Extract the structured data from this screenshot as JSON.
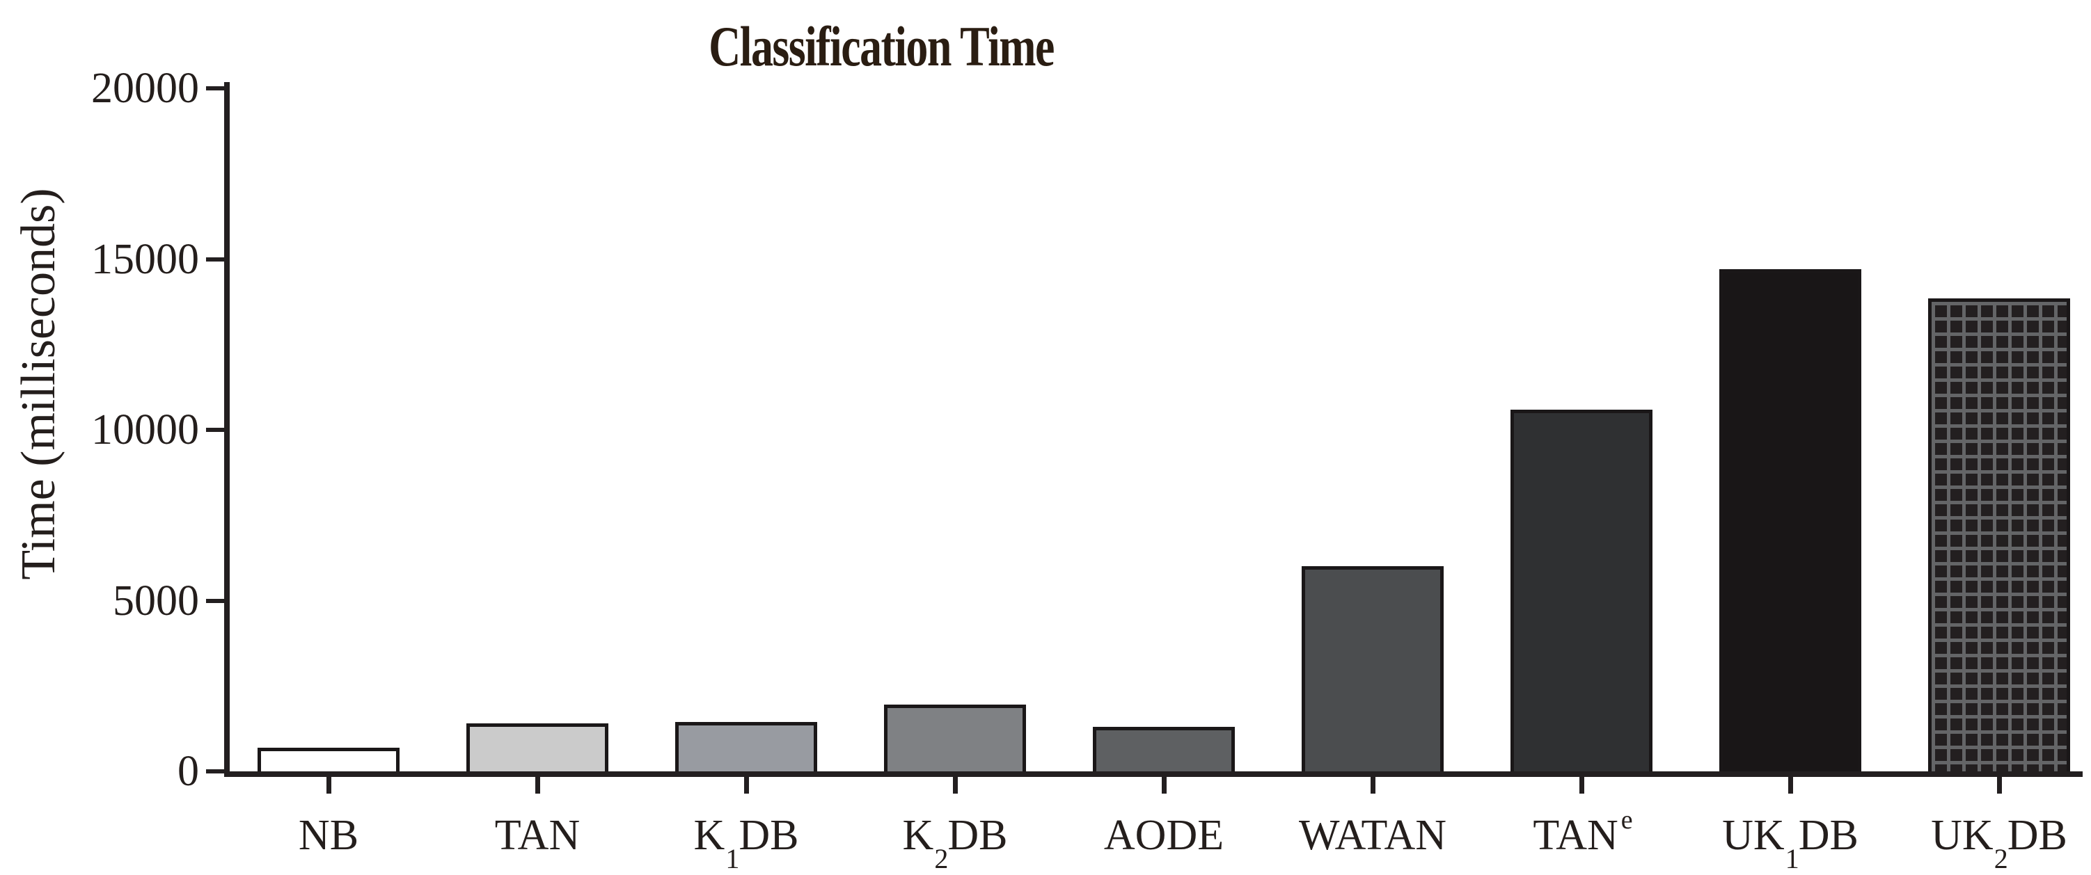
{
  "chart_data": {
    "type": "bar",
    "title": "Classification Time",
    "ylabel": "Time (milliseconds)",
    "xlabel": "",
    "ylim": [
      0,
      20000
    ],
    "yticks": [
      0,
      5000,
      10000,
      15000,
      20000
    ],
    "grid": false,
    "legend_position": "none",
    "categories": [
      "NB",
      "TAN",
      "K1DB",
      "K2DB",
      "AODE",
      "WATAN",
      "TANe",
      "UK1DB",
      "UK2DB"
    ],
    "bars": [
      {
        "label_pre": "NB",
        "label_sub": "",
        "label_sup": "",
        "label_post": "",
        "value": 700,
        "fill": "#ffffff"
      },
      {
        "label_pre": "TAN",
        "label_sub": "",
        "label_sup": "",
        "label_post": "",
        "value": 1400,
        "fill": "#cbcbcb"
      },
      {
        "label_pre": "K",
        "label_sub": "1",
        "label_sup": "",
        "label_post": "DB",
        "value": 1450,
        "fill": "#989ba1"
      },
      {
        "label_pre": "K",
        "label_sub": "2",
        "label_sup": "",
        "label_post": "DB",
        "value": 1950,
        "fill": "#7f8184"
      },
      {
        "label_pre": "AODE",
        "label_sub": "",
        "label_sup": "",
        "label_post": "",
        "value": 1300,
        "fill": "#5e6062"
      },
      {
        "label_pre": "WATAN",
        "label_sub": "",
        "label_sup": "",
        "label_post": "",
        "value": 6000,
        "fill": "#4b4d4f"
      },
      {
        "label_pre": "TAN",
        "label_sub": "",
        "label_sup": "e",
        "label_post": "",
        "value": 10600,
        "fill": "#2f3032"
      },
      {
        "label_pre": "UK",
        "label_sub": "1",
        "label_sup": "",
        "label_post": "DB",
        "value": 14700,
        "fill": "#191617"
      },
      {
        "label_pre": "UK",
        "label_sub": "2",
        "label_sup": "",
        "label_post": "DB",
        "value": 13850,
        "fill": "#231f20",
        "pattern": {
          "line_color": "#646567",
          "pitch": 22,
          "line_width": 5
        }
      }
    ],
    "colors": {
      "bar_border": "#1a1718",
      "axis": "#231f20",
      "title_text": "#2a1d12",
      "axis_text": "#241e1c",
      "background": "#ffffff"
    }
  }
}
